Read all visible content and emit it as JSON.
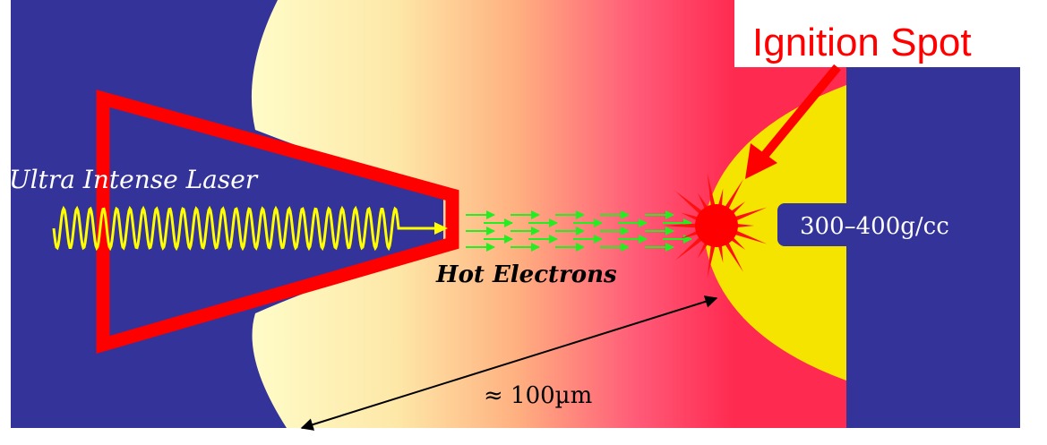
{
  "labels": {
    "ignition_spot": "Ignition Spot",
    "laser": "Ultra Intense Laser",
    "electrons": "Hot Electrons",
    "density": "300–400g/cc",
    "distance": "≈ 100µm"
  }
}
